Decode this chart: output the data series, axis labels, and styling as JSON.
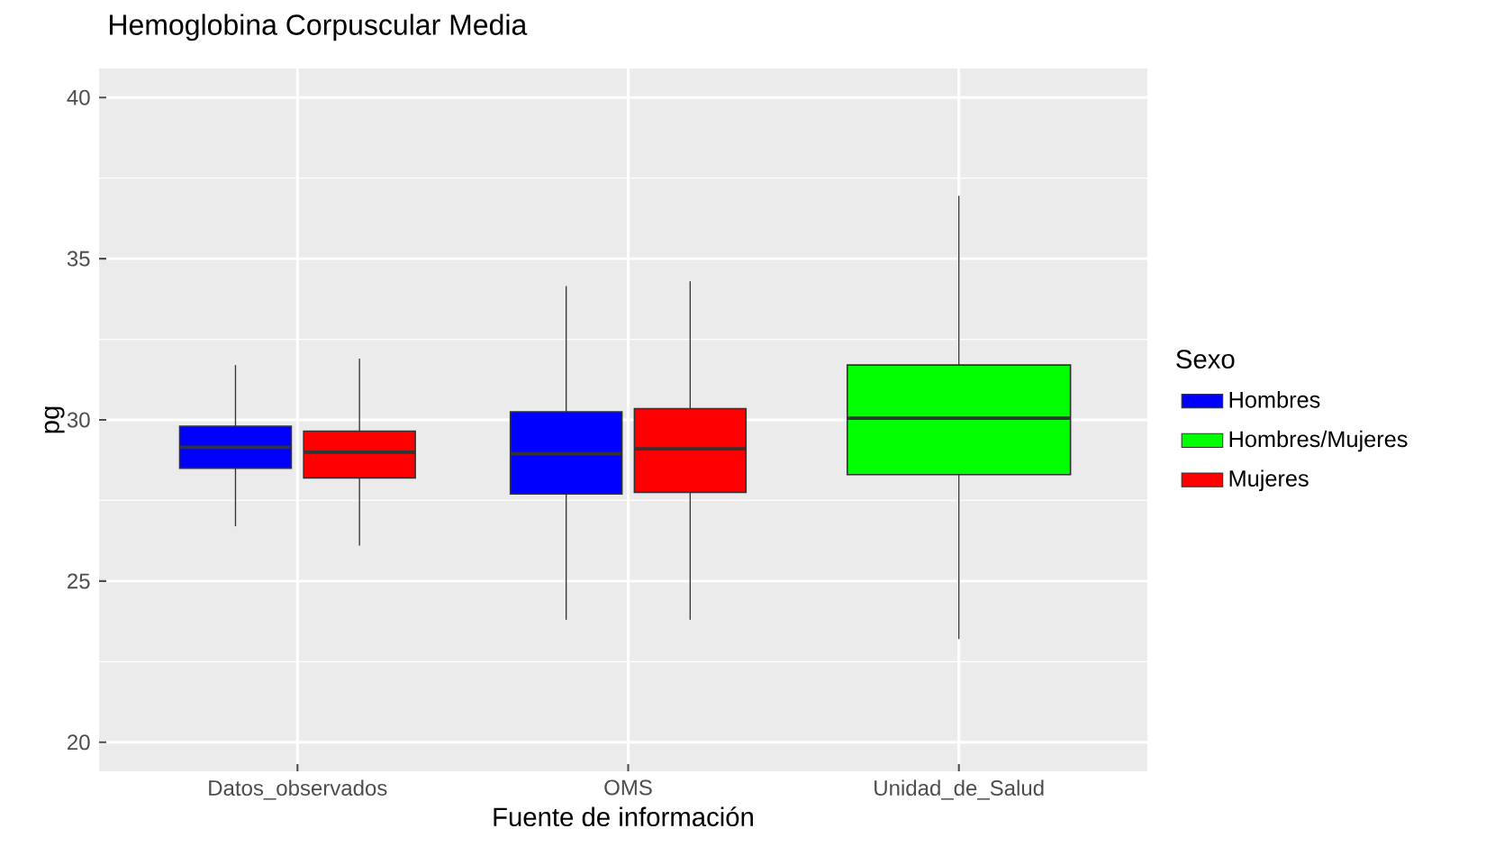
{
  "chart_data": {
    "type": "box",
    "title": "Hemoglobina Corpuscular Media",
    "xlabel": "Fuente de información",
    "ylabel": "pg",
    "legend_title": "Sexo",
    "categories": [
      "Datos_observados",
      "OMS",
      "Unidad_de_Salud"
    ],
    "series": [
      {
        "name": "Hombres",
        "color": "#0000ff",
        "boxes": [
          {
            "low": 26.7,
            "q1": 28.5,
            "median": 29.15,
            "q3": 29.8,
            "high": 31.7
          },
          {
            "low": 23.8,
            "q1": 27.7,
            "median": 28.95,
            "q3": 30.25,
            "high": 34.15
          },
          null
        ]
      },
      {
        "name": "Hombres/Mujeres",
        "color": "#00ff00",
        "boxes": [
          null,
          null,
          {
            "low": 23.2,
            "q1": 28.3,
            "median": 30.05,
            "q3": 31.7,
            "high": 36.95
          }
        ]
      },
      {
        "name": "Mujeres",
        "color": "#ff0000",
        "boxes": [
          {
            "low": 26.1,
            "q1": 28.2,
            "median": 29.0,
            "q3": 29.65,
            "high": 31.9
          },
          {
            "low": 23.8,
            "q1": 27.75,
            "median": 29.1,
            "q3": 30.35,
            "high": 34.3
          },
          null
        ]
      }
    ],
    "ylim": [
      19.1,
      40.9
    ],
    "yticks": [
      20,
      25,
      30,
      35,
      40
    ],
    "grid": true,
    "legend": "right"
  }
}
